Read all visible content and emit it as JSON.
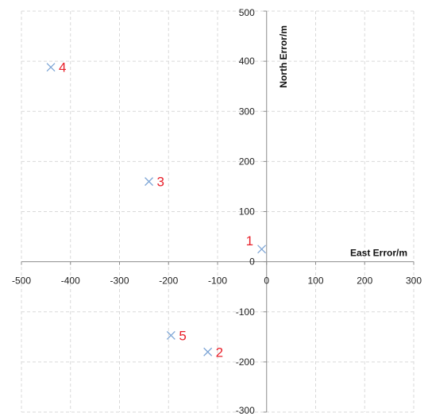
{
  "chart_data": {
    "type": "scatter",
    "title": "",
    "xlabel": "East Error/m",
    "ylabel": "North Error/m",
    "xlim": [
      -500,
      300
    ],
    "ylim": [
      -300,
      500
    ],
    "x_ticks": [
      -500,
      -400,
      -300,
      -200,
      -100,
      0,
      100,
      200,
      300
    ],
    "y_ticks": [
      -300,
      -200,
      -100,
      0,
      100,
      200,
      300,
      400,
      500
    ],
    "grid": true,
    "marker": "x",
    "marker_color": "#7ea6d6",
    "label_color": "#e8202a",
    "points": [
      {
        "label": "1",
        "x": -10,
        "y": 25
      },
      {
        "label": "2",
        "x": -120,
        "y": -180
      },
      {
        "label": "3",
        "x": -240,
        "y": 160
      },
      {
        "label": "4",
        "x": -440,
        "y": 388
      },
      {
        "label": "5",
        "x": -195,
        "y": -147
      }
    ]
  }
}
